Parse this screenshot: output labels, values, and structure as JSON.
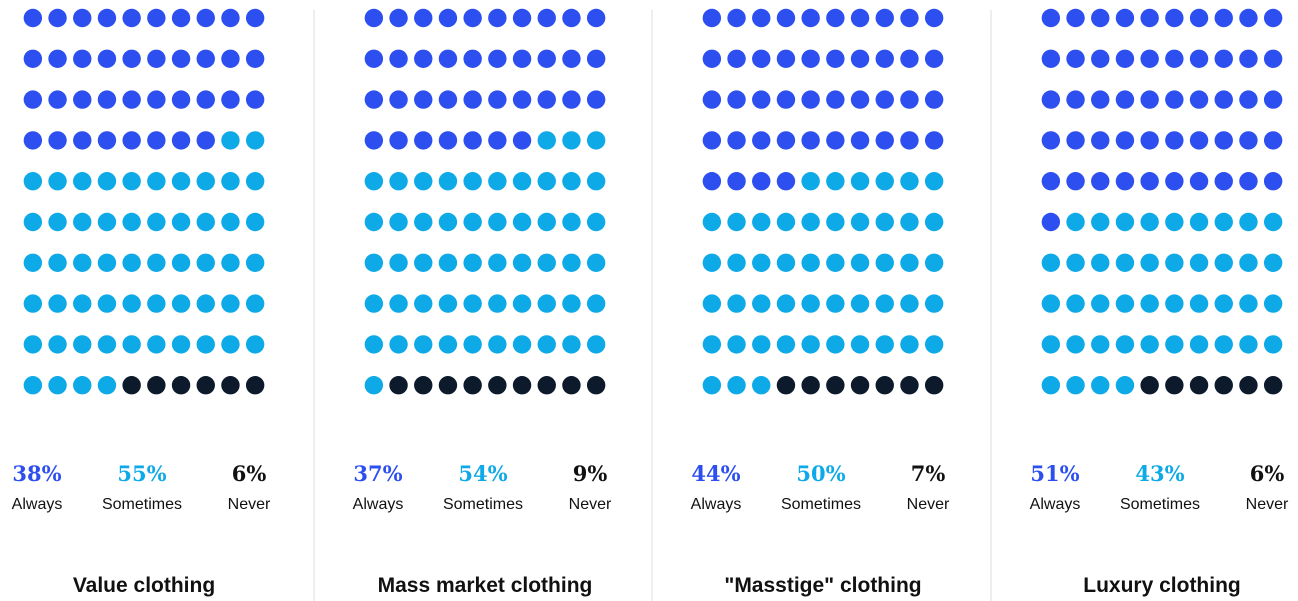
{
  "chart_data": [
    {
      "type": "waffle",
      "title": "Value clothing",
      "series": [
        {
          "name": "Always",
          "color": "#2d4ff0",
          "value": 38,
          "value_label": "38%"
        },
        {
          "name": "Sometimes",
          "color": "#0eaae8",
          "value": 55,
          "value_label": "55%"
        },
        {
          "name": "Never",
          "color": "#0c1a2b",
          "value": 6,
          "value_label": "6%"
        }
      ]
    },
    {
      "type": "waffle",
      "title": "Mass market clothing",
      "series": [
        {
          "name": "Always",
          "color": "#2d4ff0",
          "value": 37,
          "value_label": "37%"
        },
        {
          "name": "Sometimes",
          "color": "#0eaae8",
          "value": 54,
          "value_label": "54%"
        },
        {
          "name": "Never",
          "color": "#0c1a2b",
          "value": 9,
          "value_label": "9%"
        }
      ]
    },
    {
      "type": "waffle",
      "title": "\"Masstige\" clothing",
      "series": [
        {
          "name": "Always",
          "color": "#2d4ff0",
          "value": 44,
          "value_label": "44%"
        },
        {
          "name": "Sometimes",
          "color": "#0eaae8",
          "value": 50,
          "value_label": "50%"
        },
        {
          "name": "Never",
          "color": "#0c1a2b",
          "value": 7,
          "value_label": "7%"
        }
      ]
    },
    {
      "type": "waffle",
      "title": "Luxury clothing",
      "series": [
        {
          "name": "Always",
          "color": "#2d4ff0",
          "value": 51,
          "value_label": "51%"
        },
        {
          "name": "Sometimes",
          "color": "#0eaae8",
          "value": 43,
          "value_label": "43%"
        },
        {
          "name": "Never",
          "color": "#0c1a2b",
          "value": 6,
          "value_label": "6%"
        }
      ]
    }
  ]
}
